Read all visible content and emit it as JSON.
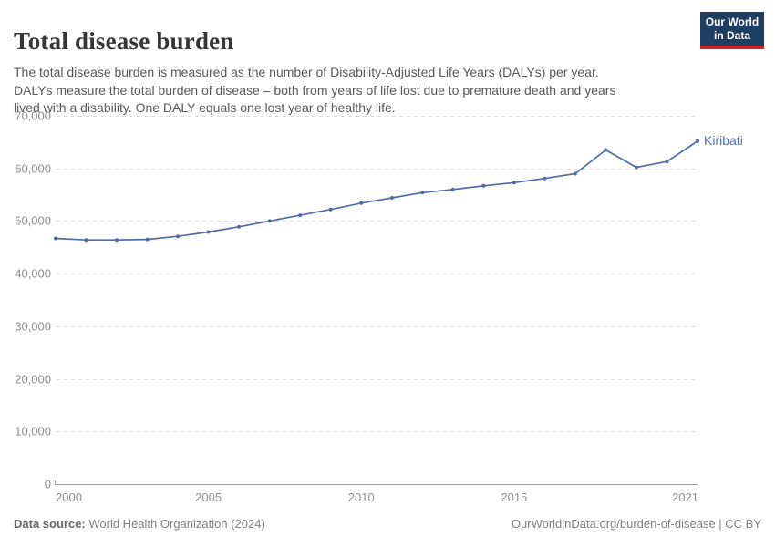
{
  "header": {
    "title": "Total disease burden",
    "subtitle": "The total disease burden is measured as the number of Disability-Adjusted Life Years (DALYs) per year.\nDALYs measure the total burden of disease – both from years of life lost due to premature death and years\nlived with a disability. One DALY equals one lost year of healthy life.",
    "logo": {
      "line1": "Our World",
      "line2": "in Data",
      "bg_color": "#1d3d63",
      "accent_color": "#c5292e"
    }
  },
  "chart_data": {
    "type": "line",
    "title": "Total disease burden",
    "xlabel": "",
    "ylabel": "",
    "xlim": [
      2000,
      2021
    ],
    "ylim": [
      0,
      70000
    ],
    "grid": "horizontal dashed",
    "legend": "end-of-line label",
    "series": [
      {
        "name": "Kiribati",
        "color": "#4e6da8",
        "x": [
          2000,
          2001,
          2002,
          2003,
          2004,
          2005,
          2006,
          2007,
          2008,
          2009,
          2010,
          2011,
          2012,
          2013,
          2014,
          2015,
          2016,
          2017,
          2018,
          2019,
          2020,
          2021
        ],
        "values": [
          46700,
          46400,
          46400,
          46500,
          47100,
          47900,
          48900,
          50000,
          51100,
          52200,
          53400,
          54400,
          55400,
          56000,
          56700,
          57300,
          58100,
          59000,
          63500,
          60200,
          61300,
          65200
        ]
      }
    ],
    "yticks": [
      {
        "value": 0,
        "label": "0"
      },
      {
        "value": 10000,
        "label": "10,000"
      },
      {
        "value": 20000,
        "label": "20,000"
      },
      {
        "value": 30000,
        "label": "30,000"
      },
      {
        "value": 40000,
        "label": "40,000"
      },
      {
        "value": 50000,
        "label": "50,000"
      },
      {
        "value": 60000,
        "label": "60,000"
      },
      {
        "value": 70000,
        "label": "70,000"
      }
    ],
    "xticks": [
      {
        "value": 2000,
        "label": "2000"
      },
      {
        "value": 2005,
        "label": "2005"
      },
      {
        "value": 2010,
        "label": "2010"
      },
      {
        "value": 2015,
        "label": "2015"
      },
      {
        "value": 2021,
        "label": "2021"
      }
    ],
    "colors": {
      "grid": "#dcdcdc",
      "axis": "#9e9e9e",
      "tick_label": "#8f8f8f"
    }
  },
  "footer": {
    "source_label": "Data source:",
    "source_value": " World Health Organization (2024)",
    "credit": "OurWorldinData.org/burden-of-disease | CC BY"
  }
}
